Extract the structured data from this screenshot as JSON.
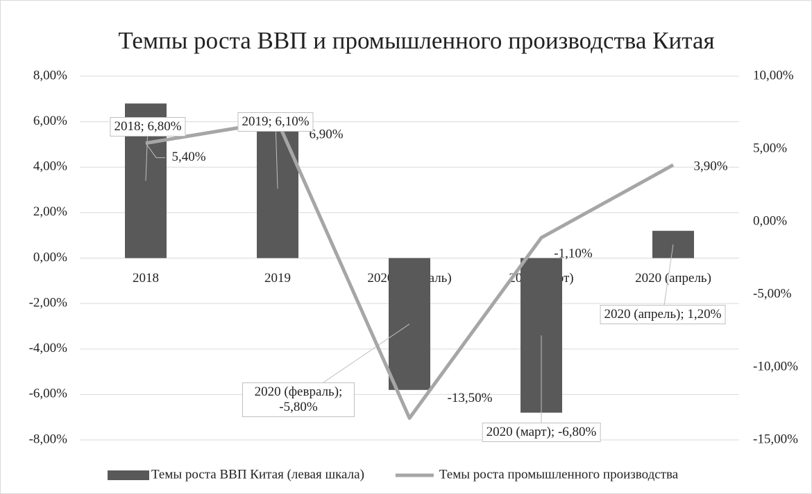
{
  "chart_data": {
    "type": "bar_line",
    "title": "Темпы роста ВВП и промышленного производства Китая",
    "categories": [
      "2018",
      "2019",
      "2020 (февраль)",
      "2020 (март)",
      "2020 (апрель)"
    ],
    "series": [
      {
        "name": "Темы роста ВВП Китая (левая шкала)",
        "type": "bar",
        "color": "#595959",
        "values": [
          6.8,
          6.1,
          -5.8,
          -6.8,
          1.2
        ],
        "value_labels": [
          "2018; 6,80%",
          "2019; 6,10%",
          "2020 (февраль); -5,80%",
          "2020 (март); -6,80%",
          "2020 (апрель); 1,20%"
        ]
      },
      {
        "name": "Темы роста промышленного производства",
        "type": "line",
        "axis": "y2",
        "color": "#a6a6a6",
        "values": [
          5.4,
          6.9,
          -13.5,
          -1.1,
          3.9
        ],
        "value_labels": [
          "5,40%",
          "6,90%",
          "-13,50%",
          "-1,10%",
          "3,90%"
        ]
      }
    ],
    "ylim": [
      -8,
      8
    ],
    "yticks": [
      {
        "value": -8,
        "label": "-8,00%"
      },
      {
        "value": -6,
        "label": "-6,00%"
      },
      {
        "value": -4,
        "label": "-4,00%"
      },
      {
        "value": -2,
        "label": "-2,00%"
      },
      {
        "value": 0,
        "label": "0,00%"
      },
      {
        "value": 2,
        "label": "2,00%"
      },
      {
        "value": 4,
        "label": "4,00%"
      },
      {
        "value": 6,
        "label": "6,00%"
      },
      {
        "value": 8,
        "label": "8,00%"
      }
    ],
    "y2lim": [
      -15,
      10
    ],
    "y2ticks": [
      {
        "value": -15,
        "label": "-15,00%"
      },
      {
        "value": -10,
        "label": "-10,00%"
      },
      {
        "value": -5,
        "label": "-5,00%"
      },
      {
        "value": 0,
        "label": "0,00%"
      },
      {
        "value": 5,
        "label": "5,00%"
      },
      {
        "value": 10,
        "label": "10,00%"
      }
    ],
    "grid": true,
    "legend": "bottom"
  }
}
